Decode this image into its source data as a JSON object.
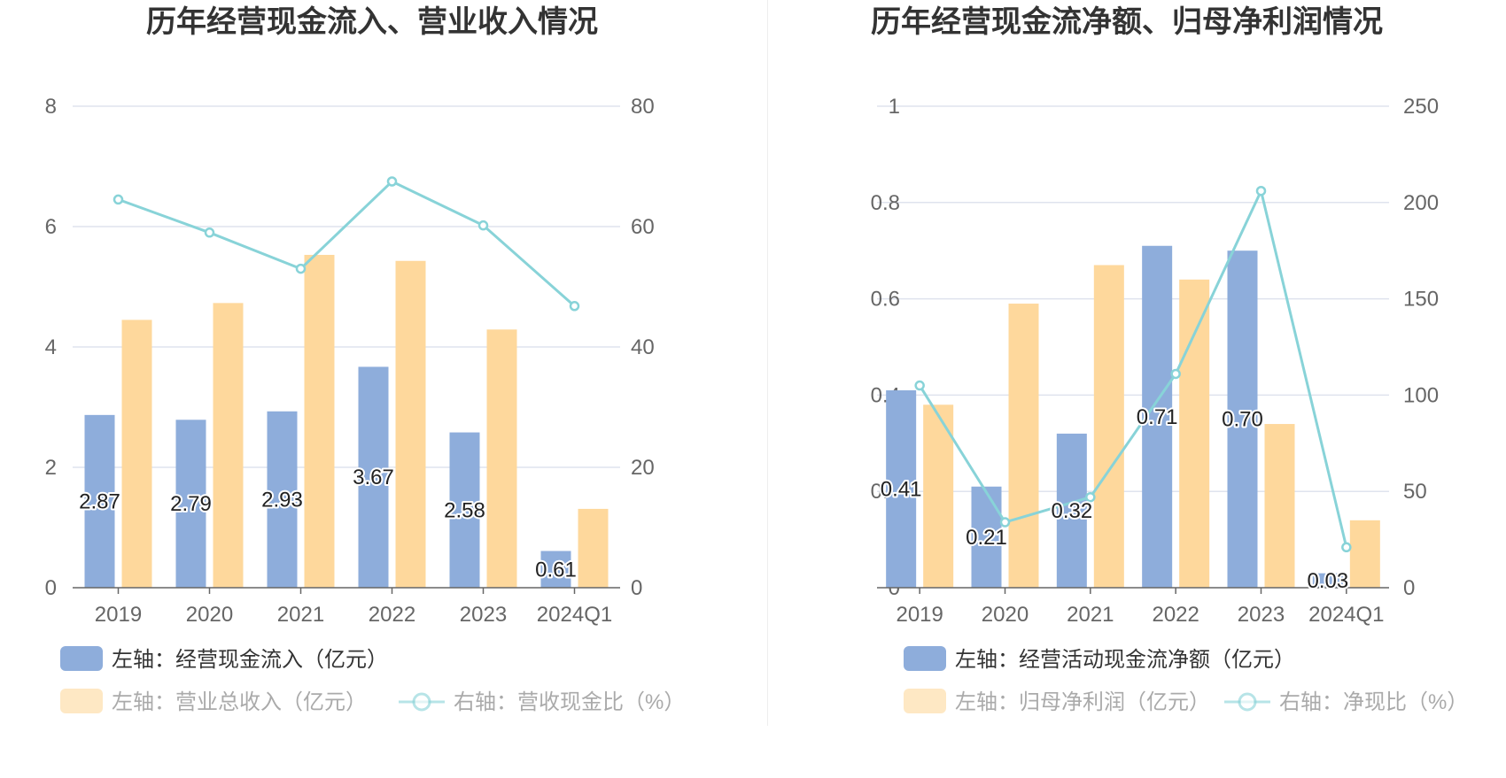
{
  "colors": {
    "bar1": "#8eaddb",
    "bar2": "#fed89c",
    "line": "#88d3d8",
    "grid": "#dfe3ee",
    "axis": "#666666"
  },
  "chart_data": [
    {
      "type": "bar",
      "title": "历年经营现金流入、营业收入情况",
      "categories": [
        "2019",
        "2020",
        "2021",
        "2022",
        "2023",
        "2024Q1"
      ],
      "left_axis": {
        "ticks": [
          "0",
          "2",
          "4",
          "6",
          "8"
        ],
        "ylim": [
          0,
          8
        ]
      },
      "right_axis": {
        "ticks": [
          "0",
          "20",
          "40",
          "60",
          "80"
        ],
        "ylim": [
          0,
          80
        ]
      },
      "series": [
        {
          "name": "左轴：经营现金流入（亿元）",
          "axis": "left",
          "kind": "bar",
          "values": [
            2.87,
            2.79,
            2.93,
            3.67,
            2.58,
            0.61
          ]
        },
        {
          "name": "左轴：营业总收入（亿元）",
          "axis": "left",
          "kind": "bar",
          "values": [
            4.45,
            4.73,
            5.53,
            5.43,
            4.29,
            1.31
          ]
        },
        {
          "name": "右轴：营收现金比（%）",
          "axis": "right",
          "kind": "line",
          "values": [
            64.5,
            59.0,
            53.0,
            67.5,
            60.2,
            46.8
          ]
        }
      ],
      "data_labels": [
        "2.87",
        "2.79",
        "2.93",
        "3.67",
        "2.58",
        "0.61"
      ],
      "grid": true,
      "legend_position": "bottom-left"
    },
    {
      "type": "bar",
      "title": "历年经营现金流净额、归母净利润情况",
      "categories": [
        "2019",
        "2020",
        "2021",
        "2022",
        "2023",
        "2024Q1"
      ],
      "left_axis": {
        "ticks": [
          "0",
          "0.2",
          "0.4",
          "0.6",
          "0.8",
          "1"
        ],
        "ylim": [
          0,
          1
        ]
      },
      "right_axis": {
        "ticks": [
          "0",
          "50",
          "100",
          "150",
          "200",
          "250"
        ],
        "ylim": [
          0,
          250
        ]
      },
      "series": [
        {
          "name": "左轴：经营活动现金流净额（亿元）",
          "axis": "left",
          "kind": "bar",
          "values": [
            0.41,
            0.21,
            0.32,
            0.71,
            0.7,
            0.03
          ]
        },
        {
          "name": "左轴：归母净利润（亿元）",
          "axis": "left",
          "kind": "bar",
          "values": [
            0.38,
            0.59,
            0.67,
            0.64,
            0.34,
            0.14
          ]
        },
        {
          "name": "右轴：净现比（%）",
          "axis": "right",
          "kind": "line",
          "values": [
            105,
            34,
            47,
            111,
            206,
            21
          ]
        }
      ],
      "data_labels": [
        "0.41",
        "0.21",
        "0.32",
        "0.71",
        "0.70",
        "0.03"
      ],
      "grid": true,
      "legend_position": "bottom-left"
    }
  ]
}
